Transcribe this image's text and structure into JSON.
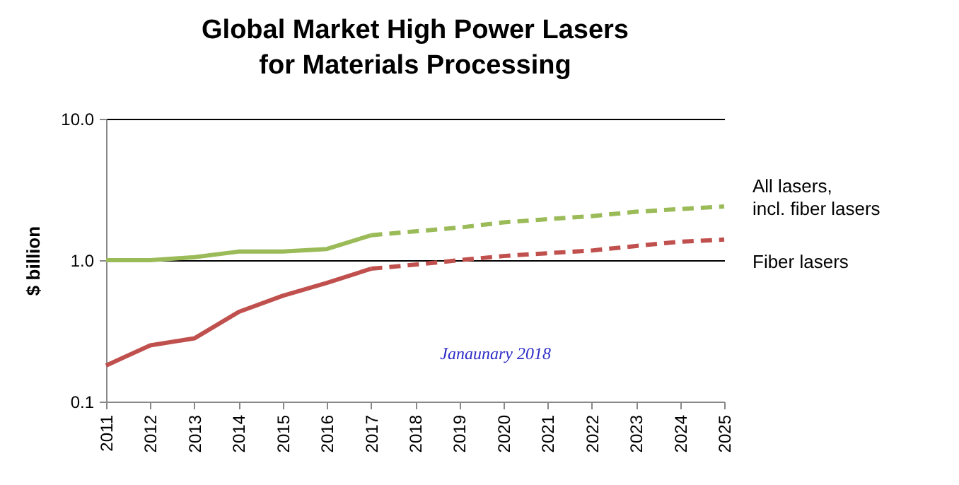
{
  "chart_data": {
    "type": "line",
    "title": "Global Market High Power Lasers for Materials Processing",
    "ylabel": "$ billion",
    "categories": [
      "2011",
      "2012",
      "2013",
      "2014",
      "2015",
      "2016",
      "2017",
      "2018",
      "2019",
      "2020",
      "2021",
      "2022",
      "2023",
      "2024",
      "2025"
    ],
    "series": [
      {
        "name": "All lasers, incl. fiber lasers",
        "color": "#9bbb59",
        "line_style": "solid",
        "values": [
          1.0,
          1.0,
          1.05,
          1.15,
          1.15,
          1.2,
          1.5,
          null,
          null,
          null,
          null,
          null,
          null,
          null,
          null
        ]
      },
      {
        "color": "#9bbb59",
        "line_style": "dashed",
        "values": [
          null,
          null,
          null,
          null,
          null,
          null,
          1.5,
          1.6,
          1.7,
          1.85,
          1.95,
          2.05,
          2.2,
          2.3,
          2.4
        ]
      },
      {
        "name": "Fiber lasers",
        "color": "#c0504d",
        "line_style": "solid",
        "values": [
          0.18,
          0.25,
          0.28,
          0.43,
          0.56,
          0.69,
          0.87,
          null,
          null,
          null,
          null,
          null,
          null,
          null,
          null
        ]
      },
      {
        "color": "#c0504d",
        "line_style": "dashed",
        "values": [
          null,
          null,
          null,
          null,
          null,
          null,
          0.87,
          0.93,
          1.0,
          1.07,
          1.12,
          1.17,
          1.26,
          1.35,
          1.4
        ]
      }
    ],
    "log": true,
    "ylim": [
      0.1,
      10
    ],
    "yticks": [
      {
        "value": 0.1,
        "label": "0.1"
      },
      {
        "value": 1,
        "label": "1.0"
      },
      {
        "value": 10,
        "label": "10.0"
      }
    ],
    "grid": "y",
    "annotations": [
      "Janaunary 2018"
    ]
  }
}
